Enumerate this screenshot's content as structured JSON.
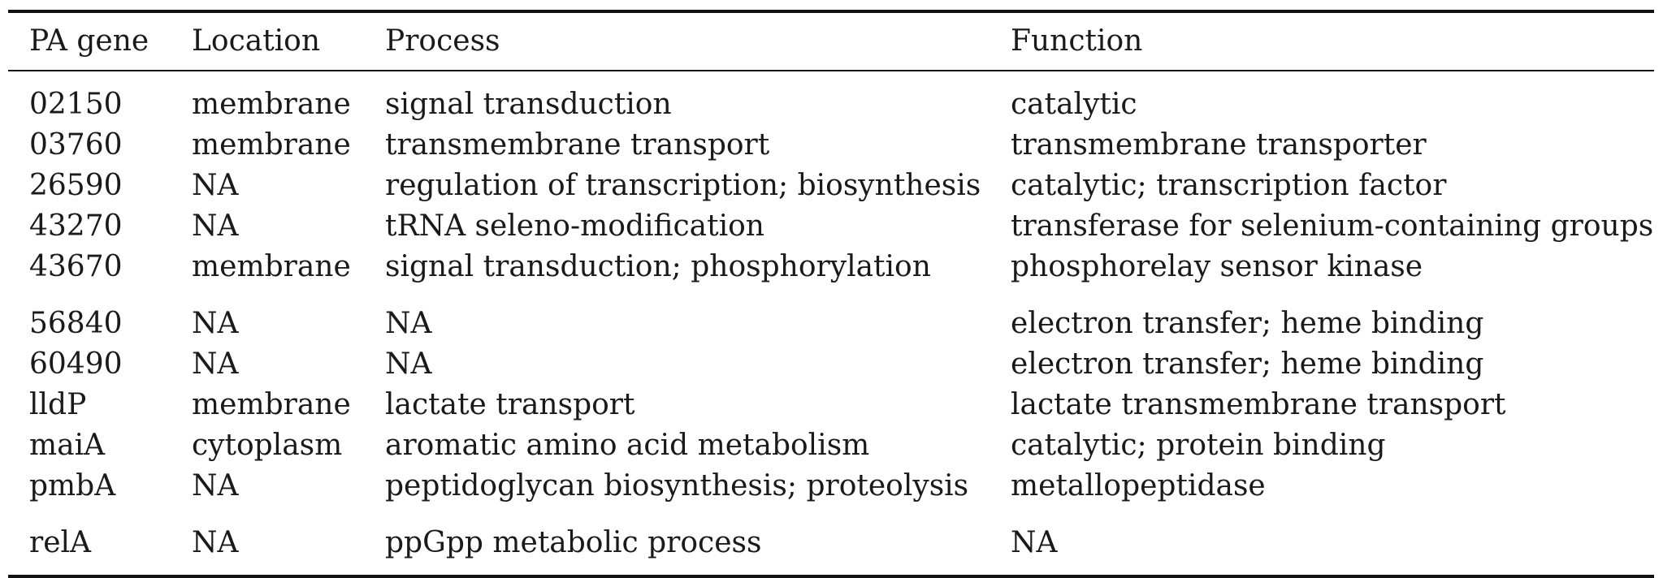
{
  "table": {
    "headers": [
      "PA gene",
      "Location",
      "Process",
      "Function"
    ],
    "rows": [
      [
        "02150",
        "membrane",
        "signal transduction",
        "catalytic"
      ],
      [
        "03760",
        "membrane",
        "transmembrane transport",
        "transmembrane transporter"
      ],
      [
        "26590",
        "NA",
        "regulation of transcription; biosynthesis",
        "catalytic; transcription factor"
      ],
      [
        "43270",
        "NA",
        "tRNA seleno-modification",
        "transferase for selenium-containing groups"
      ],
      [
        "43670",
        "membrane",
        "signal transduction; phosphorylation",
        "phosphorelay sensor kinase"
      ],
      [
        "56840",
        "NA",
        "NA",
        "electron transfer; heme binding"
      ],
      [
        "60490",
        "NA",
        "NA",
        "electron transfer; heme binding"
      ],
      [
        "lldP",
        "membrane",
        "lactate transport",
        "lactate transmembrane transport"
      ],
      [
        "maiA",
        "cytoplasm",
        "aromatic amino acid metabolism",
        "catalytic; protein binding"
      ],
      [
        "pmbA",
        "NA",
        "peptidoglycan biosynthesis; proteolysis",
        "metallopeptidase"
      ],
      [
        "relA",
        "NA",
        "ppGpp metabolic process",
        "NA"
      ]
    ]
  }
}
